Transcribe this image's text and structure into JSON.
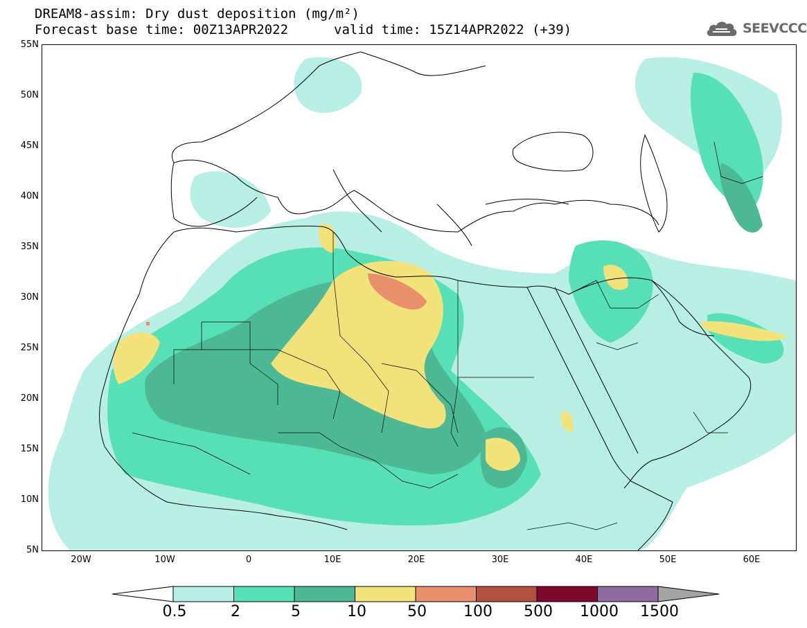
{
  "header": {
    "title": "DREAM8-assim: Dry dust deposition (mg/m²)",
    "forecast_base": "Forecast base time: 00Z13APR2022",
    "valid_time": "valid time: 15Z14APR2022 (+39)"
  },
  "logo": {
    "text": "SEEVCCC",
    "icon": "cloud-icon"
  },
  "map": {
    "region": "North Africa / Middle East / Europe",
    "lon_range": [
      -25,
      65
    ],
    "lat_range": [
      5,
      55
    ],
    "lat_labels": [
      "55N",
      "50N",
      "45N",
      "40N",
      "35N",
      "30N",
      "25N",
      "20N",
      "15N",
      "10N",
      "5N"
    ],
    "lon_labels": [
      "20W",
      "10W",
      "0",
      "10E",
      "20E",
      "30E",
      "40E",
      "50E",
      "60E"
    ]
  },
  "legend": {
    "boundaries": [
      "0.5",
      "2",
      "5",
      "10",
      "50",
      "100",
      "500",
      "1000",
      "1500"
    ],
    "colors": [
      "#ffffff",
      "#b8efe4",
      "#57e0b5",
      "#4cb994",
      "#f2e27a",
      "#e8906b",
      "#b3503f",
      "#7e0a2b",
      "#8f6aa0",
      "#a4a4a4"
    ]
  }
}
